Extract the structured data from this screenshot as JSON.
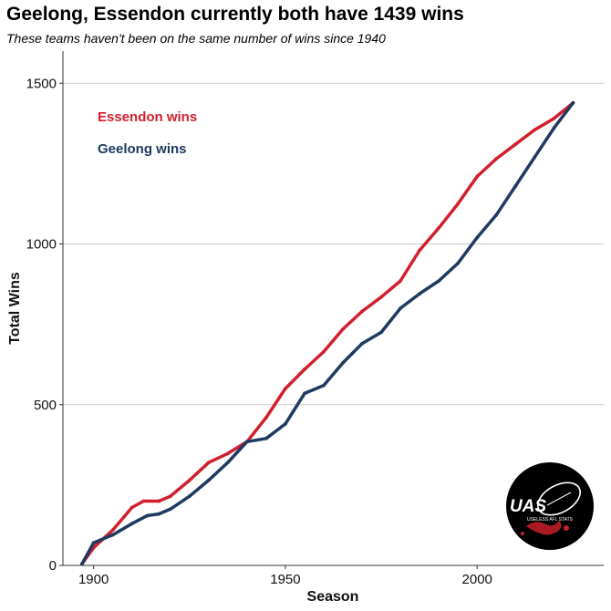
{
  "chart_data": {
    "type": "line",
    "title": "Geelong, Essendon currently both have 1439 wins",
    "subtitle": "These teams haven't been on the same number of wins since 1940",
    "xlabel": "Season",
    "ylabel": "Total Wins",
    "xlim": [
      1892,
      2033
    ],
    "ylim": [
      0,
      1600
    ],
    "x_ticks": [
      1900,
      1950,
      2000
    ],
    "y_ticks": [
      0,
      500,
      1000,
      1500
    ],
    "grid": "horizontal major gridlines",
    "legend_placement": "top-left, labels in series colour",
    "series": [
      {
        "name": "Essendon wins",
        "color": "#d0202e",
        "points": [
          [
            1897,
            5
          ],
          [
            1900,
            55
          ],
          [
            1905,
            110
          ],
          [
            1910,
            180
          ],
          [
            1913,
            200
          ],
          [
            1917,
            200
          ],
          [
            1920,
            215
          ],
          [
            1925,
            265
          ],
          [
            1930,
            320
          ],
          [
            1935,
            348
          ],
          [
            1940,
            385
          ],
          [
            1945,
            460
          ],
          [
            1950,
            550
          ],
          [
            1955,
            610
          ],
          [
            1960,
            665
          ],
          [
            1965,
            735
          ],
          [
            1970,
            790
          ],
          [
            1975,
            835
          ],
          [
            1980,
            885
          ],
          [
            1985,
            980
          ],
          [
            1990,
            1050
          ],
          [
            1995,
            1125
          ],
          [
            2000,
            1210
          ],
          [
            2005,
            1265
          ],
          [
            2010,
            1310
          ],
          [
            2015,
            1355
          ],
          [
            2020,
            1390
          ],
          [
            2025,
            1439
          ]
        ]
      },
      {
        "name": "Geelong wins",
        "color": "#1f3a60",
        "points": [
          [
            1897,
            5
          ],
          [
            1900,
            70
          ],
          [
            1905,
            95
          ],
          [
            1910,
            130
          ],
          [
            1914,
            155
          ],
          [
            1917,
            160
          ],
          [
            1920,
            175
          ],
          [
            1925,
            215
          ],
          [
            1930,
            265
          ],
          [
            1935,
            320
          ],
          [
            1940,
            385
          ],
          [
            1945,
            395
          ],
          [
            1950,
            440
          ],
          [
            1955,
            535
          ],
          [
            1960,
            560
          ],
          [
            1965,
            630
          ],
          [
            1970,
            690
          ],
          [
            1975,
            725
          ],
          [
            1980,
            800
          ],
          [
            1985,
            845
          ],
          [
            1990,
            885
          ],
          [
            1995,
            940
          ],
          [
            2000,
            1020
          ],
          [
            2005,
            1090
          ],
          [
            2010,
            1180
          ],
          [
            2015,
            1270
          ],
          [
            2020,
            1360
          ],
          [
            2025,
            1439
          ]
        ]
      }
    ]
  },
  "logo": {
    "text": "UAS",
    "tagline": "USELESS AFL STATS",
    "colors": {
      "background": "#000000",
      "accent": "#c81e2a",
      "text": "#ffffff"
    }
  }
}
